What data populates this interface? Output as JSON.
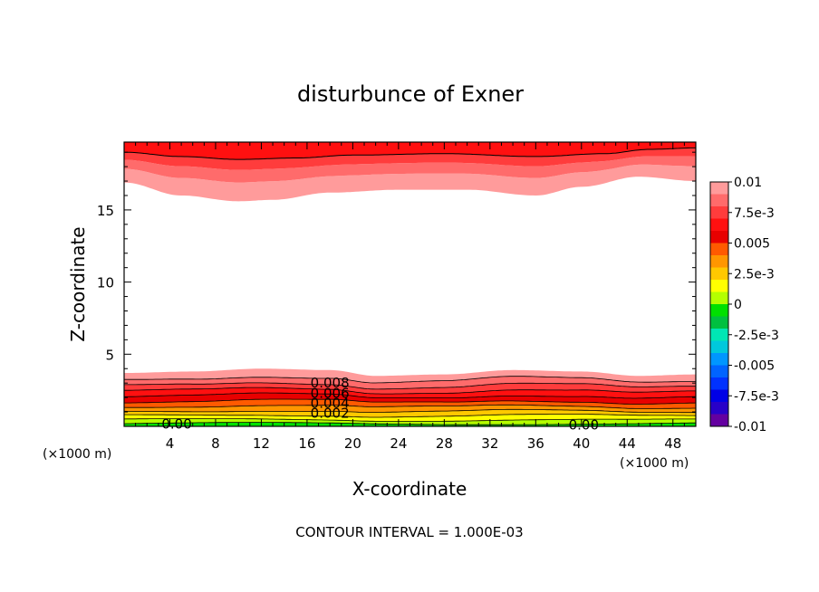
{
  "chart_data": {
    "type": "contour",
    "title": "disturbunce of Exner",
    "xlabel": "X-coordinate",
    "ylabel": "Z-coordinate",
    "x_unit": "(×1000 m)",
    "x_unit_right": "(×1000 m)",
    "xlim": [
      0,
      50
    ],
    "ylim": [
      0,
      19.7
    ],
    "x_ticks": [
      4,
      8,
      12,
      16,
      20,
      24,
      28,
      32,
      36,
      40,
      44,
      48
    ],
    "x_tick_labels": [
      "4",
      "8",
      "12",
      "16",
      "20",
      "24",
      "28",
      "32",
      "36",
      "40",
      "44",
      "48"
    ],
    "y_ticks": [
      5,
      10,
      15
    ],
    "y_tick_labels": [
      "5",
      "10",
      "15"
    ],
    "footnote": "CONTOUR INTERVAL = 1.000E-03",
    "contour_interval": 0.001,
    "contour_labels": [
      {
        "text": "0.008",
        "x": 18.0,
        "z": 3.0
      },
      {
        "text": "0.006",
        "x": 18.0,
        "z": 2.3
      },
      {
        "text": "0.004",
        "x": 18.0,
        "z": 1.6
      },
      {
        "text": "0.002",
        "x": 18.0,
        "z": 0.9
      },
      {
        "text": "0.00",
        "x": 4.6,
        "z": 0.15
      },
      {
        "text": "0.00",
        "x": 40.2,
        "z": 0.1
      }
    ],
    "colorbar": {
      "labels": [
        "0.01",
        "7.5e-3",
        "0.005",
        "2.5e-3",
        "0",
        "-2.5e-3",
        "-0.005",
        "-7.5e-3",
        "-0.01"
      ],
      "levels_top_to_bottom": [
        0.01,
        0.009,
        0.008,
        0.007,
        0.006,
        0.005,
        0.004,
        0.003,
        0.002,
        0.001,
        0,
        -0.001,
        -0.002,
        -0.003,
        -0.004,
        -0.005,
        -0.006,
        -0.007,
        -0.008,
        -0.009
      ],
      "colors_top_to_bottom": [
        "#ff9b9b",
        "#ff6b6b",
        "#ff3c3c",
        "#ff1010",
        "#e80000",
        "#ff5a00",
        "#ff9600",
        "#ffc800",
        "#ffff00",
        "#b4ff00",
        "#00e000",
        "#00c040",
        "#00e6b4",
        "#00c8dc",
        "#0096ff",
        "#0064ff",
        "#0032ff",
        "#0000e6",
        "#2800c8",
        "#6400a0"
      ]
    },
    "fields": {
      "top_layer_bottom_z": [
        [
          0,
          16.9
        ],
        [
          5,
          16.0
        ],
        [
          10,
          15.6
        ],
        [
          13,
          15.7
        ],
        [
          18,
          16.2
        ],
        [
          24,
          16.4
        ],
        [
          30,
          16.4
        ],
        [
          36,
          16.0
        ],
        [
          40,
          16.6
        ],
        [
          45,
          17.3
        ],
        [
          50,
          17.0
        ]
      ],
      "top_contour_z": [
        [
          0,
          19.0
        ],
        [
          5,
          18.7
        ],
        [
          10,
          18.5
        ],
        [
          15,
          18.6
        ],
        [
          20,
          18.8
        ],
        [
          28,
          18.9
        ],
        [
          36,
          18.7
        ],
        [
          42,
          18.9
        ],
        [
          46,
          19.2
        ],
        [
          50,
          19.3
        ]
      ],
      "bottom_layer_top_z": [
        [
          0,
          3.7
        ],
        [
          6,
          3.8
        ],
        [
          12,
          4.0
        ],
        [
          18,
          3.9
        ],
        [
          22,
          3.5
        ],
        [
          28,
          3.6
        ],
        [
          34,
          3.9
        ],
        [
          40,
          3.8
        ],
        [
          45,
          3.5
        ],
        [
          50,
          3.6
        ]
      ]
    }
  }
}
